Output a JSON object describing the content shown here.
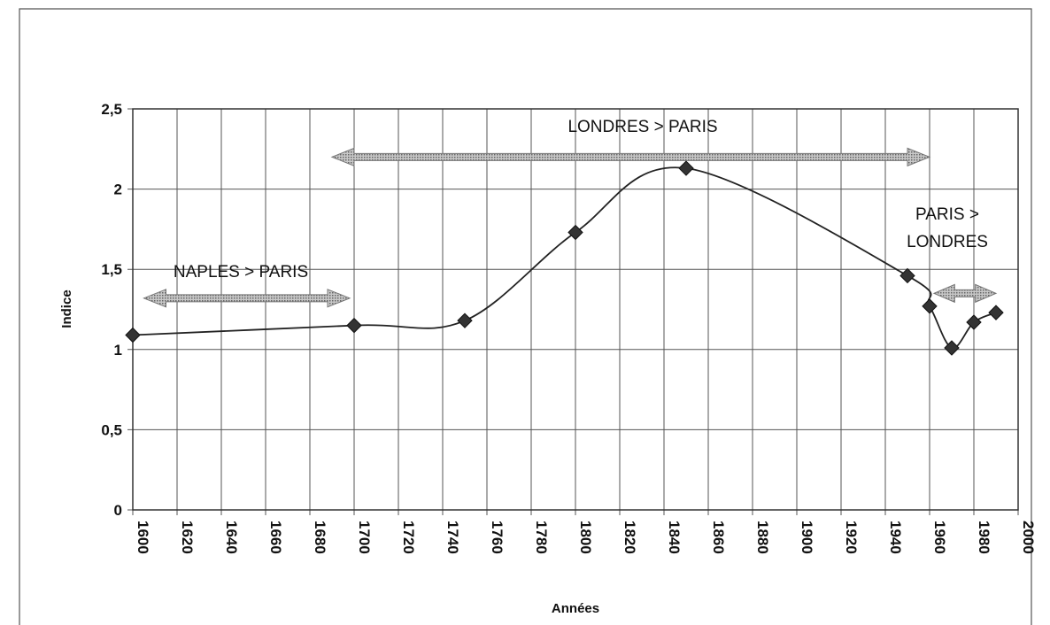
{
  "chart_data": {
    "type": "line",
    "x": [
      1600,
      1700,
      1750,
      1800,
      1850,
      1950,
      1960,
      1970,
      1980,
      1990
    ],
    "series": [
      {
        "color": "#222222",
        "values": [
          1.09,
          1.15,
          1.18,
          1.73,
          2.13,
          1.46,
          1.27,
          1.01,
          1.17,
          1.23
        ]
      }
    ],
    "xlim": [
      1600,
      2000
    ],
    "xticks": [
      1600,
      1620,
      1640,
      1660,
      1680,
      1700,
      1720,
      1740,
      1760,
      1780,
      1800,
      1820,
      1840,
      1860,
      1880,
      1900,
      1920,
      1940,
      1960,
      1980,
      2000
    ],
    "ylim": [
      0,
      2.5
    ],
    "yticks": [
      0,
      {
        "value": 0.5,
        "label": "0,5"
      },
      1,
      {
        "value": 1.5,
        "label": "1,5"
      },
      2,
      {
        "value": 2.5,
        "label": "2,5"
      }
    ],
    "grid": true,
    "xlabel": "Années",
    "ylabel": "Indice",
    "annotations": [
      {
        "lines": [
          "LONDRES > PARIS"
        ],
        "x": [
          1690,
          1960
        ],
        "y": 2.2
      },
      {
        "lines": [
          "NAPLES > PARIS"
        ],
        "x": [
          1605,
          1698
        ],
        "y": 1.32
      },
      {
        "lines": [
          "PARIS >",
          "LONDRES"
        ],
        "x": [
          1962,
          1990
        ],
        "y": 1.35
      }
    ]
  }
}
